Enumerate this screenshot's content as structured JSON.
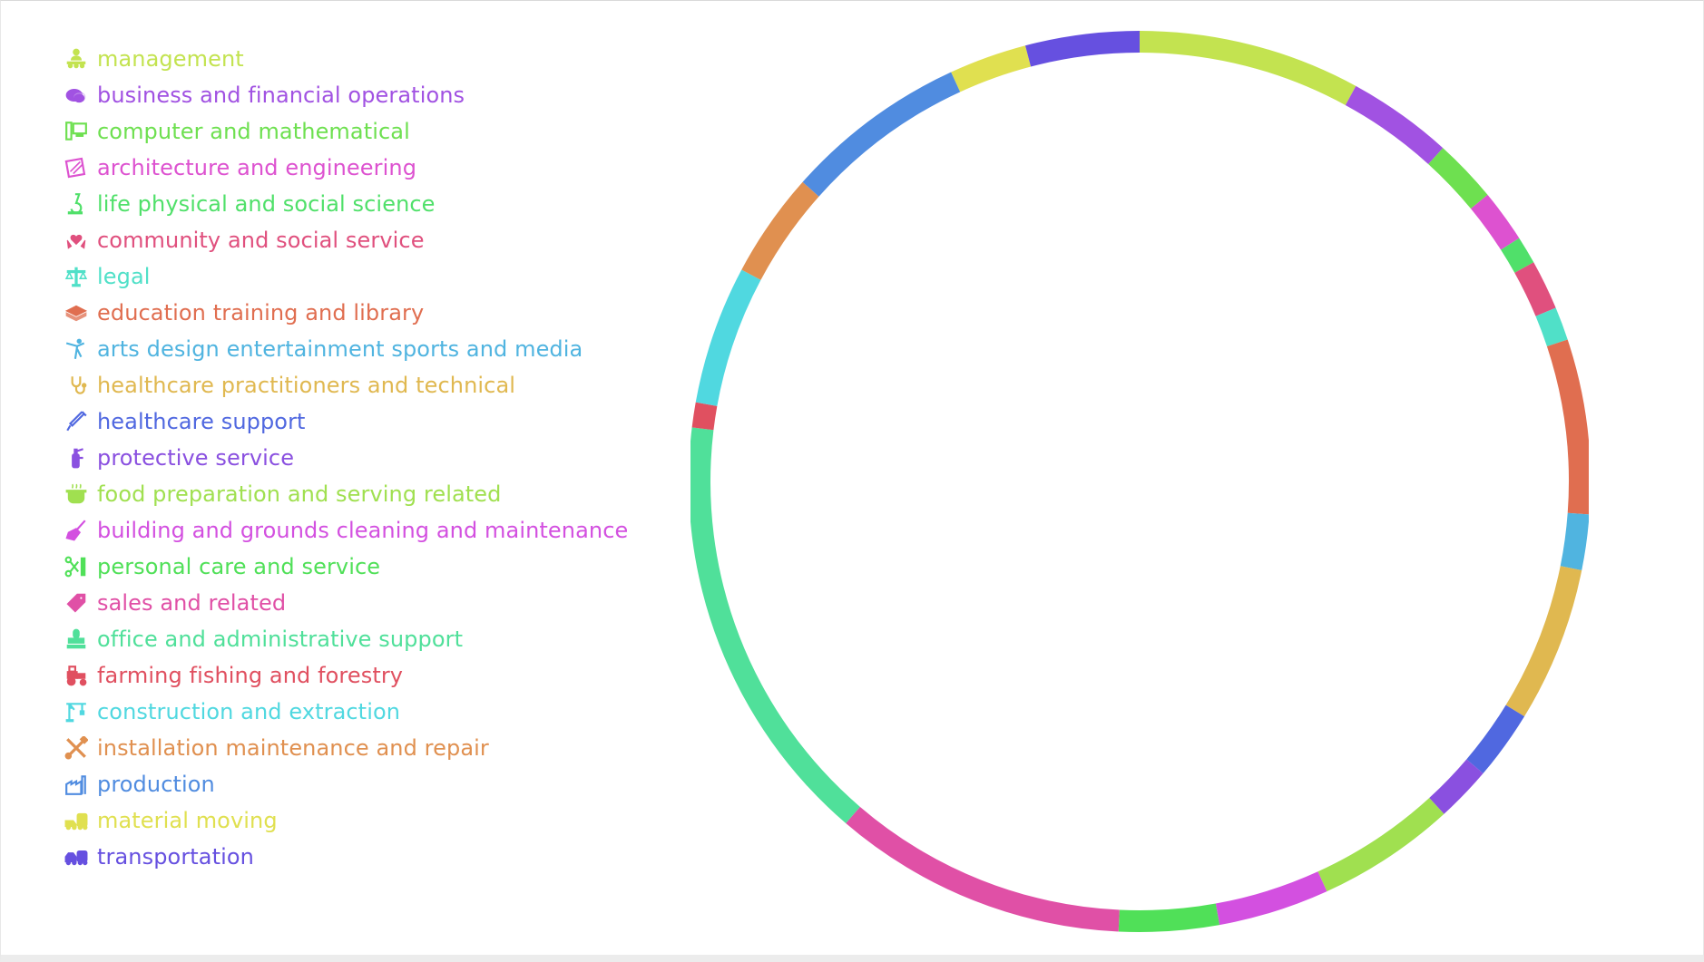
{
  "chart_data": {
    "type": "pie",
    "variant": "thin ring (donut)",
    "start_angle_deg": 0,
    "direction": "clockwise from top",
    "legend_placement": "left",
    "grid": false,
    "series": [
      {
        "name": "management",
        "value": 8.0,
        "color": "#c3e350",
        "icon": "people-group-icon"
      },
      {
        "name": "business and financial operations",
        "value": 3.8,
        "color": "#a152e2",
        "icon": "coins-icon"
      },
      {
        "name": "computer and mathematical",
        "value": 2.3,
        "color": "#6ee050",
        "icon": "computer-icon"
      },
      {
        "name": "architecture and engineering",
        "value": 1.9,
        "color": "#dd52d0",
        "icon": "blueprint-icon"
      },
      {
        "name": "life physical and social science",
        "value": 1.0,
        "color": "#50e06a",
        "icon": "microscope-icon"
      },
      {
        "name": "community and social service",
        "value": 1.8,
        "color": "#e0507e",
        "icon": "hands-heart-icon"
      },
      {
        "name": "legal",
        "value": 1.2,
        "color": "#50e0c8",
        "icon": "scales-icon"
      },
      {
        "name": "education training and library",
        "value": 6.3,
        "color": "#e06e50",
        "icon": "book-icon"
      },
      {
        "name": "arts design entertainment sports and media",
        "value": 2.0,
        "color": "#50b4e0",
        "icon": "dancer-icon"
      },
      {
        "name": "healthcare practitioners and technical",
        "value": 5.6,
        "color": "#e0b850",
        "icon": "stethoscope-icon"
      },
      {
        "name": "healthcare support",
        "value": 2.5,
        "color": "#5068e0",
        "icon": "syringe-icon"
      },
      {
        "name": "protective service",
        "value": 2.0,
        "color": "#8a50e0",
        "icon": "extinguisher-icon"
      },
      {
        "name": "food preparation and serving related",
        "value": 5.0,
        "color": "#a0e050",
        "icon": "cooking-pot-icon"
      },
      {
        "name": "building and grounds cleaning and maintenance",
        "value": 4.0,
        "color": "#d350e0",
        "icon": "broom-icon"
      },
      {
        "name": "personal care and service",
        "value": 3.6,
        "color": "#50e058",
        "icon": "scissors-comb-icon"
      },
      {
        "name": "sales and related",
        "value": 10.6,
        "color": "#e050a6",
        "icon": "price-tag-icon"
      },
      {
        "name": "office and administrative support",
        "value": 15.7,
        "color": "#50e09a",
        "icon": "stamp-icon"
      },
      {
        "name": "farming fishing and forestry",
        "value": 0.9,
        "color": "#e05060",
        "icon": "tractor-icon"
      },
      {
        "name": "construction and extraction",
        "value": 5.0,
        "color": "#50d8e0",
        "icon": "crane-icon"
      },
      {
        "name": "installation maintenance and repair",
        "value": 3.8,
        "color": "#e09050",
        "icon": "tools-icon"
      },
      {
        "name": "production",
        "value": 6.6,
        "color": "#508ce0",
        "icon": "factory-icon"
      },
      {
        "name": "material moving",
        "value": 2.8,
        "color": "#e0e050",
        "icon": "truck-bus-icon"
      },
      {
        "name": "transportation",
        "value": 4.1,
        "color": "#6650e0",
        "icon": "truck-car-icon"
      }
    ]
  }
}
